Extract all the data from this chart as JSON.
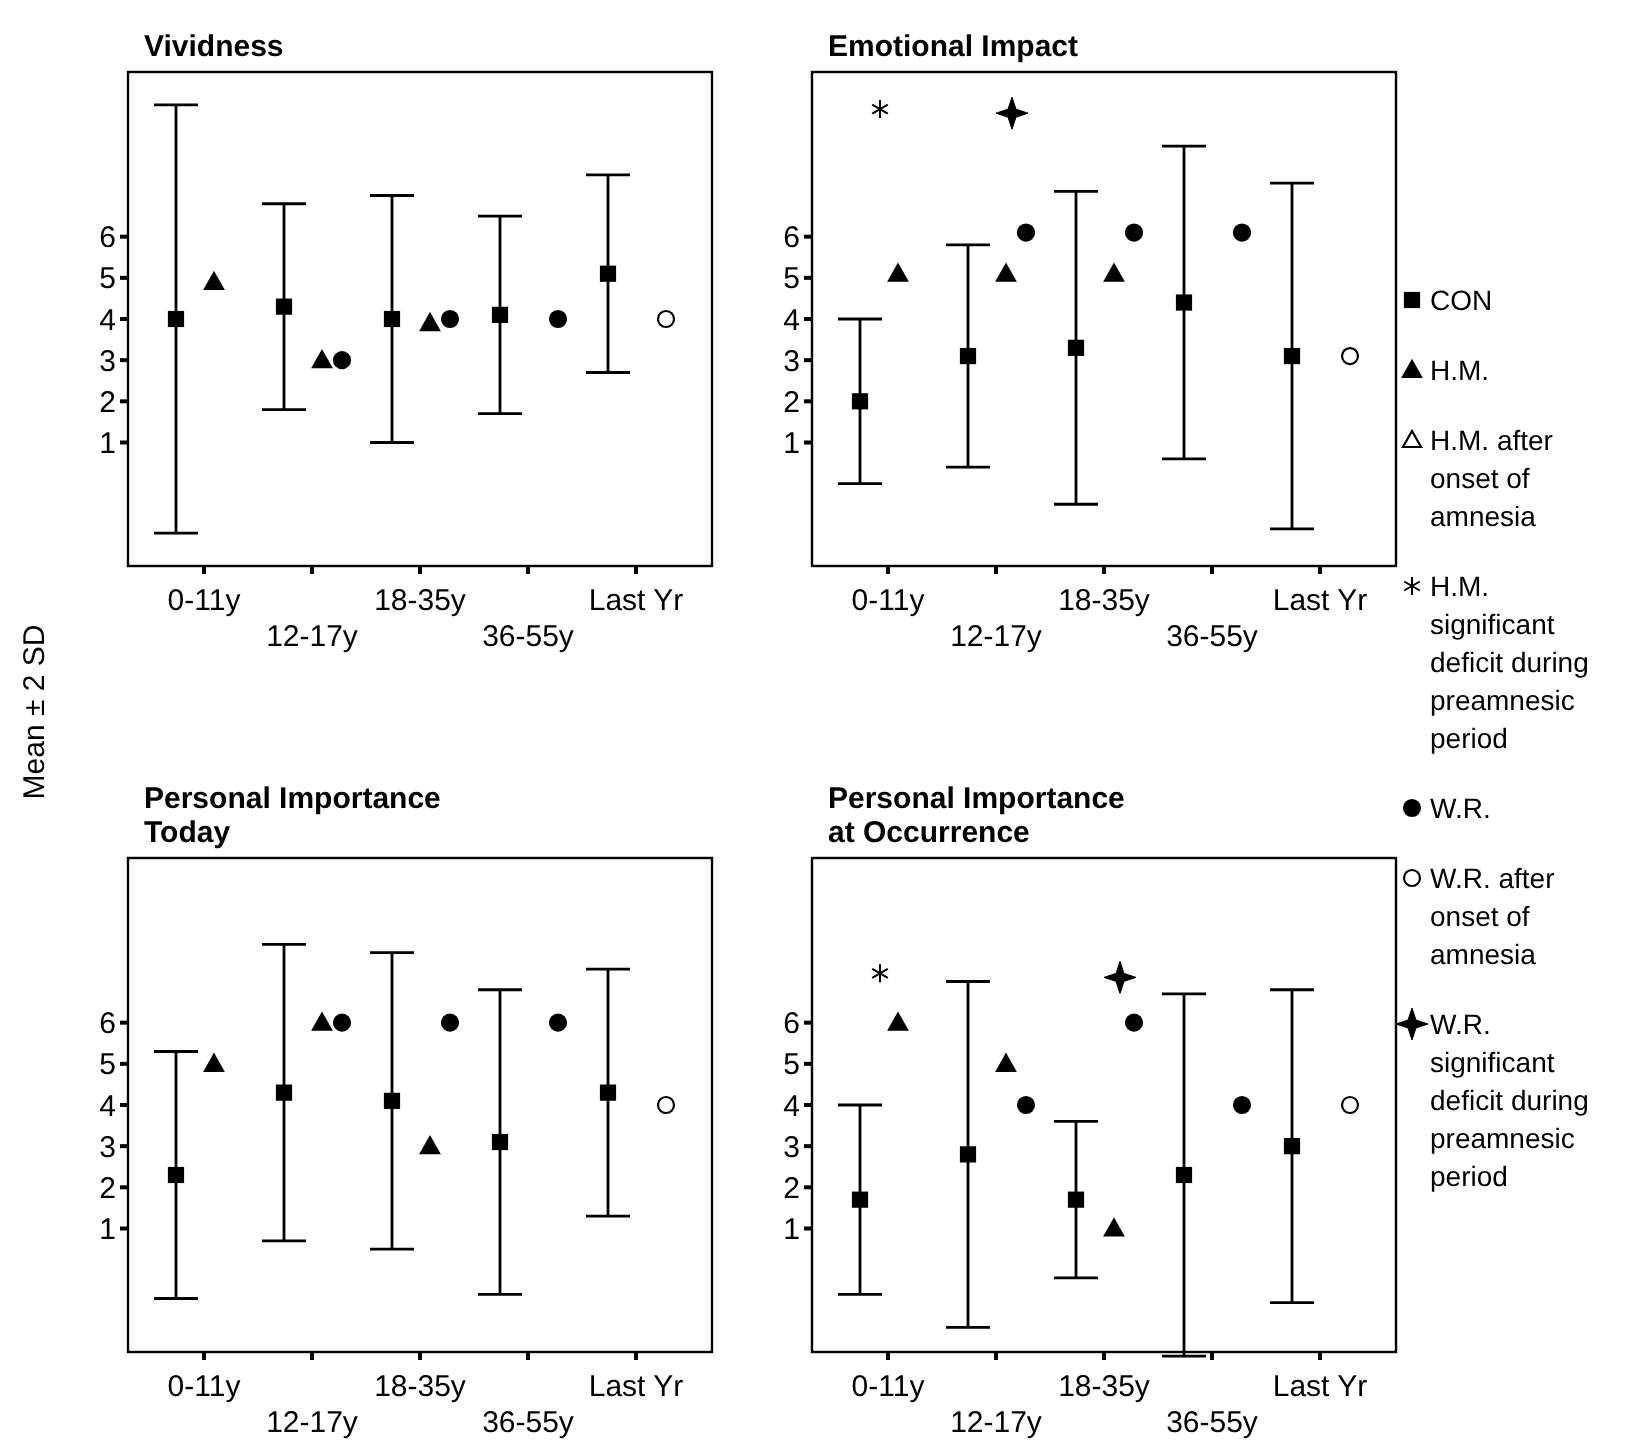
{
  "chart_data": [
    {
      "type": "scatter",
      "title": "Vividness",
      "ylabel": "Mean ± 2 SD",
      "categories": [
        "0-11y",
        "12-17y",
        "18-35y",
        "36-55y",
        "Last Yr"
      ],
      "ylim": [
        -2,
        10
      ],
      "yticks": [
        1,
        2,
        3,
        4,
        5,
        6
      ],
      "legend": false,
      "series": [
        {
          "color": "#000000",
          "marker": "square",
          "values": [
            4.0,
            4.3,
            4.0,
            4.1,
            5.1
          ],
          "errors": [
            5.2,
            2.5,
            3.0,
            2.4,
            2.4
          ]
        },
        {
          "color": "#000000",
          "marker": "triangle",
          "values": [
            4.9,
            3.0,
            3.9,
            null,
            null
          ]
        },
        {
          "color": "#000000",
          "marker": "circle",
          "values": [
            null,
            3.0,
            4.0,
            4.0,
            null
          ]
        },
        {
          "color": "#ffffff",
          "marker": "circle",
          "values": [
            null,
            null,
            null,
            null,
            4.0
          ]
        }
      ]
    },
    {
      "type": "scatter",
      "title": "Emotional Impact",
      "categories": [
        "0-11y",
        "12-17y",
        "18-35y",
        "36-55y",
        "Last Yr"
      ],
      "ylim": [
        -2,
        10
      ],
      "yticks": [
        1,
        2,
        3,
        4,
        5,
        6
      ],
      "legend": "right",
      "series": [
        {
          "name": "CON",
          "color": "#000000",
          "marker": "square",
          "values": [
            2.0,
            3.1,
            3.3,
            4.4,
            3.1
          ],
          "errors": [
            2.0,
            2.7,
            3.8,
            3.8,
            4.2
          ]
        },
        {
          "name": "H.M.",
          "color": "#000000",
          "marker": "triangle",
          "values": [
            5.1,
            5.1,
            5.1,
            null,
            null
          ]
        },
        {
          "name": "H.M. after onset of amnesia",
          "color": "#ffffff",
          "marker": "triangle",
          "values": [
            null,
            null,
            null,
            null,
            null
          ]
        },
        {
          "name": "H.M. significant deficit during preamnesic period",
          "color": "#000000",
          "marker": "cross",
          "values": [
            9.1,
            null,
            null,
            null,
            null
          ]
        },
        {
          "name": "W.R.",
          "color": "#000000",
          "marker": "circle",
          "values": [
            null,
            6.1,
            6.1,
            6.1,
            null
          ]
        },
        {
          "name": "W.R. after onset of amnesia",
          "color": "#ffffff",
          "marker": "circle",
          "values": [
            null,
            null,
            null,
            null,
            3.1
          ]
        },
        {
          "name": "W.R. significant deficit during preamnesic period",
          "color": "#000000",
          "marker": "star",
          "values": [
            null,
            9.0,
            null,
            null,
            null
          ]
        }
      ]
    },
    {
      "type": "scatter",
      "title": "Personal Importance Today",
      "categories": [
        "0-11y",
        "12-17y",
        "18-35y",
        "36-55y",
        "Last Yr"
      ],
      "ylim": [
        -2,
        10
      ],
      "yticks": [
        1,
        2,
        3,
        4,
        5,
        6
      ],
      "legend": false,
      "series": [
        {
          "color": "#000000",
          "marker": "square",
          "values": [
            2.3,
            4.3,
            4.1,
            3.1,
            4.3
          ],
          "errors": [
            3.0,
            3.6,
            3.6,
            3.7,
            3.0
          ]
        },
        {
          "color": "#000000",
          "marker": "triangle",
          "values": [
            5.0,
            6.0,
            3.0,
            null,
            null
          ]
        },
        {
          "color": "#000000",
          "marker": "circle",
          "values": [
            null,
            6.0,
            6.0,
            6.0,
            null
          ]
        },
        {
          "color": "#ffffff",
          "marker": "circle",
          "values": [
            null,
            null,
            null,
            null,
            4.0
          ]
        }
      ]
    },
    {
      "type": "scatter",
      "title": "Personal Importance at Occurrence",
      "categories": [
        "0-11y",
        "12-17y",
        "18-35y",
        "36-55y",
        "Last Yr"
      ],
      "ylim": [
        -2,
        10
      ],
      "yticks": [
        1,
        2,
        3,
        4,
        5,
        6
      ],
      "legend": false,
      "series": [
        {
          "color": "#000000",
          "marker": "square",
          "values": [
            1.7,
            2.8,
            1.7,
            2.3,
            3.0
          ],
          "errors": [
            2.3,
            4.2,
            1.9,
            4.4,
            3.8
          ]
        },
        {
          "color": "#000000",
          "marker": "triangle",
          "values": [
            6.0,
            5.0,
            1.0,
            null,
            null
          ]
        },
        {
          "color": "#000000",
          "marker": "cross",
          "values": [
            7.2,
            null,
            null,
            null,
            null
          ]
        },
        {
          "color": "#000000",
          "marker": "circle",
          "values": [
            null,
            4.0,
            6.0,
            4.0,
            null
          ]
        },
        {
          "color": "#ffffff",
          "marker": "circle",
          "values": [
            null,
            null,
            null,
            null,
            4.0
          ]
        },
        {
          "color": "#000000",
          "marker": "star",
          "values": [
            null,
            null,
            7.1,
            null,
            null
          ]
        }
      ]
    }
  ]
}
